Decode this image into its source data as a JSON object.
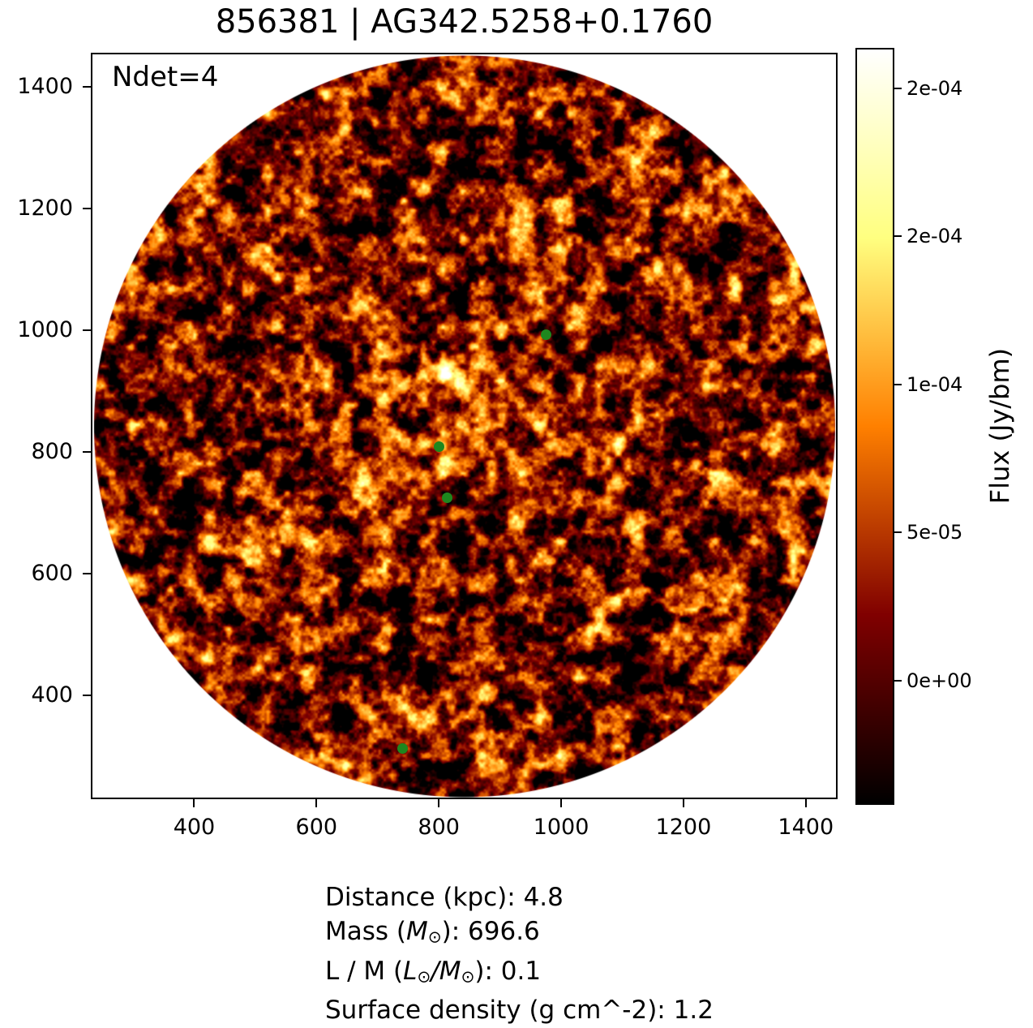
{
  "figure": {
    "title": "856381 | AG342.5258+0.1760",
    "background_color": "#ffffff"
  },
  "chart_data": {
    "type": "heatmap",
    "title": "856381 | AG342.5258+0.1760",
    "annotation": "Ndet=4",
    "xlim": [
      231,
      1452
    ],
    "ylim": [
      229,
      1456
    ],
    "x_ticks": [
      {
        "value": 400,
        "label": "400"
      },
      {
        "value": 600,
        "label": "600"
      },
      {
        "value": 800,
        "label": "800"
      },
      {
        "value": 1000,
        "label": "1000"
      },
      {
        "value": 1200,
        "label": "1200"
      },
      {
        "value": 1400,
        "label": "1400"
      }
    ],
    "y_ticks": [
      {
        "value": 400,
        "label": "400"
      },
      {
        "value": 600,
        "label": "600"
      },
      {
        "value": 800,
        "label": "800"
      },
      {
        "value": 1000,
        "label": "1000"
      },
      {
        "value": 1200,
        "label": "1200"
      },
      {
        "value": 1400,
        "label": "1400"
      }
    ],
    "image": {
      "shape": "circular-field-inscribed-in-axes",
      "colormap": "afmhot",
      "texture": "correlated speckle noise, mostly dark red/black with orange-yellow filaments",
      "noise_seed": 7,
      "bright_source": {
        "x": 809,
        "y": 925
      }
    },
    "colorbar": {
      "label": "Flux (Jy/bm)",
      "vmin": -4.2e-05,
      "vmax": 0.0002137,
      "ticks": [
        {
          "value": 0.0002,
          "label": "2e-04"
        },
        {
          "value": 0.00015,
          "label": "2e-04"
        },
        {
          "value": 0.0001,
          "label": "1e-04"
        },
        {
          "value": 5e-05,
          "label": "5e-05"
        },
        {
          "value": 0.0,
          "label": "0e+00"
        }
      ]
    },
    "detections": [
      {
        "x": 976,
        "y": 993
      },
      {
        "x": 801,
        "y": 808
      },
      {
        "x": 813,
        "y": 725
      },
      {
        "x": 741,
        "y": 313
      }
    ],
    "marker_color": "#1e871e",
    "legend": "none",
    "grid": false
  },
  "info_lines": [
    {
      "segments": [
        {
          "t": "Distance (kpc): 4.8"
        }
      ]
    },
    {
      "segments": [
        {
          "t": "Mass ("
        },
        {
          "t": "M",
          "style": "it"
        },
        {
          "t": "⊙",
          "style": "sub"
        },
        {
          "t": "): 696.6"
        }
      ]
    },
    {
      "segments": [
        {
          "t": "L / M ("
        },
        {
          "t": "L",
          "style": "it"
        },
        {
          "t": "⊙",
          "style": "sub"
        },
        {
          "t": "/",
          "style": "it"
        },
        {
          "t": "M",
          "style": "it"
        },
        {
          "t": "⊙",
          "style": "sub"
        },
        {
          "t": "): 0.1"
        }
      ]
    },
    {
      "segments": [
        {
          "t": "Surface density (g cm^-2): 1.2"
        }
      ]
    }
  ]
}
